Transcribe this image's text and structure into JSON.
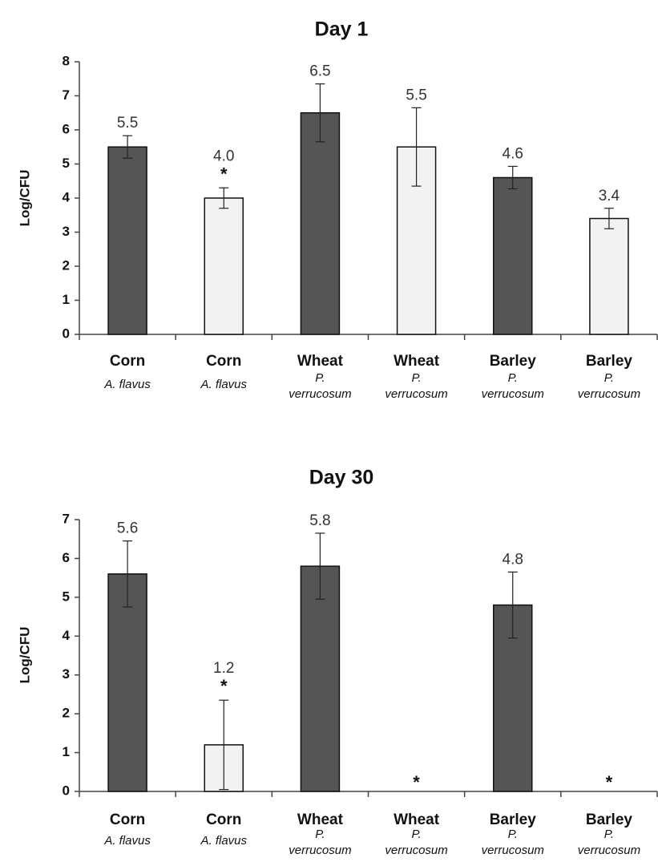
{
  "chart_data": [
    {
      "type": "bar",
      "title": "Day 1",
      "ylabel": "Log/CFU",
      "ylim": [
        0,
        8
      ],
      "yticks": [
        "0",
        "1",
        "2",
        "3",
        "4",
        "5",
        "6",
        "7",
        "8"
      ],
      "categories": [
        {
          "name": "Corn",
          "sub": [
            "A. flavus"
          ]
        },
        {
          "name": "Corn",
          "sub": [
            "A. flavus"
          ]
        },
        {
          "name": "Wheat",
          "sub": [
            "P.",
            "verrucosum"
          ]
        },
        {
          "name": "Wheat",
          "sub": [
            "P.",
            "verrucosum"
          ]
        },
        {
          "name": "Barley",
          "sub": [
            "P.",
            "verrucosum"
          ]
        },
        {
          "name": "Barley",
          "sub": [
            "P.",
            "verrucosum"
          ]
        }
      ],
      "values": [
        5.5,
        4.0,
        6.5,
        5.5,
        4.6,
        3.4
      ],
      "errors": [
        0.33,
        0.3,
        0.85,
        1.15,
        0.33,
        0.3
      ],
      "data_labels": [
        "5.5",
        "4.0",
        "6.5",
        "5.5",
        "4.6",
        "3.4"
      ],
      "significance": [
        "",
        "*",
        "",
        "",
        "",
        ""
      ],
      "bar_colors": [
        "#555555",
        "#f2f2f2",
        "#555555",
        "#f2f2f2",
        "#555555",
        "#f2f2f2"
      ]
    },
    {
      "type": "bar",
      "title": "Day 30",
      "ylabel": "Log/CFU",
      "ylim": [
        0,
        7
      ],
      "yticks": [
        "0",
        "1",
        "2",
        "3",
        "4",
        "5",
        "6",
        "7"
      ],
      "categories": [
        {
          "name": "Corn",
          "sub": [
            "A. flavus"
          ]
        },
        {
          "name": "Corn",
          "sub": [
            "A. flavus"
          ]
        },
        {
          "name": "Wheat",
          "sub": [
            "P.",
            "verrucosum"
          ]
        },
        {
          "name": "Wheat",
          "sub": [
            "P.",
            "verrucosum"
          ]
        },
        {
          "name": "Barley",
          "sub": [
            "P.",
            "verrucosum"
          ]
        },
        {
          "name": "Barley",
          "sub": [
            "P.",
            "verrucosum"
          ]
        }
      ],
      "values": [
        5.6,
        1.2,
        5.8,
        0,
        4.8,
        0
      ],
      "errors": [
        0.85,
        1.15,
        0.85,
        0,
        0.85,
        0
      ],
      "data_labels": [
        "5.6",
        "1.2",
        "5.8",
        "",
        "4.8",
        ""
      ],
      "significance": [
        "",
        "*",
        "",
        "*",
        "",
        "*"
      ],
      "bar_colors": [
        "#555555",
        "#f2f2f2",
        "#555555",
        "#f2f2f2",
        "#555555",
        "#f2f2f2"
      ]
    }
  ]
}
